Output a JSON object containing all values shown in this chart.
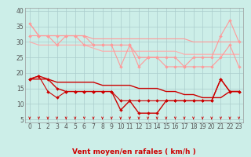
{
  "title": "Vent moyen/en rafales ( km/h )",
  "bg_color": "#cceee8",
  "grid_color": "#aacccc",
  "x_labels": [
    "0",
    "1",
    "2",
    "3",
    "4",
    "5",
    "6",
    "7",
    "8",
    "9",
    "10",
    "11",
    "12",
    "13",
    "14",
    "15",
    "16",
    "17",
    "18",
    "19",
    "20",
    "21",
    "22",
    "23"
  ],
  "ylim": [
    4,
    41
  ],
  "yticks": [
    5,
    10,
    15,
    20,
    25,
    30,
    35,
    40
  ],
  "series": [
    {
      "color": "#ff9999",
      "lw": 0.8,
      "marker": null,
      "data": [
        36,
        32,
        32,
        32,
        32,
        32,
        32,
        31,
        31,
        31,
        31,
        31,
        31,
        31,
        31,
        31,
        31,
        31,
        30,
        30,
        30,
        30,
        30,
        30
      ]
    },
    {
      "color": "#ff9999",
      "lw": 0.8,
      "marker": "D",
      "ms": 2.0,
      "data": [
        36,
        32,
        32,
        32,
        32,
        32,
        32,
        29,
        29,
        29,
        29,
        29,
        25,
        25,
        25,
        25,
        25,
        22,
        25,
        25,
        25,
        32,
        37,
        30
      ]
    },
    {
      "color": "#ff9999",
      "lw": 0.8,
      "marker": "D",
      "ms": 2.0,
      "data": [
        32,
        32,
        32,
        29,
        32,
        32,
        29,
        29,
        29,
        29,
        22,
        29,
        22,
        25,
        25,
        22,
        22,
        22,
        22,
        22,
        22,
        25,
        29,
        22
      ]
    },
    {
      "color": "#ffaaaa",
      "lw": 0.8,
      "marker": null,
      "data": [
        30,
        29,
        29,
        29,
        29,
        29,
        29,
        28,
        27,
        27,
        27,
        27,
        27,
        27,
        27,
        27,
        27,
        26,
        26,
        26,
        26,
        26,
        26,
        26
      ]
    },
    {
      "color": "#cc0000",
      "lw": 1.0,
      "marker": null,
      "data": [
        18,
        18,
        18,
        17,
        17,
        17,
        17,
        17,
        16,
        16,
        16,
        16,
        15,
        15,
        15,
        14,
        14,
        13,
        13,
        12,
        12,
        12,
        14,
        14
      ]
    },
    {
      "color": "#cc0000",
      "lw": 1.0,
      "marker": "D",
      "ms": 2.0,
      "data": [
        18,
        19,
        18,
        15,
        14,
        14,
        14,
        14,
        14,
        14,
        8,
        11,
        7,
        7,
        7,
        11,
        11,
        11,
        11,
        11,
        11,
        18,
        14,
        14
      ]
    },
    {
      "color": "#cc0000",
      "lw": 0.8,
      "marker": "D",
      "ms": 2.0,
      "data": [
        18,
        19,
        14,
        12,
        14,
        14,
        14,
        14,
        14,
        14,
        11,
        11,
        11,
        11,
        11,
        11,
        11,
        11,
        11,
        11,
        11,
        18,
        14,
        14
      ]
    }
  ],
  "arrow_color": "#cc0000",
  "xlabel_color": "#cc0000",
  "tick_color": "#555555",
  "tick_fontsize": 5.5,
  "xlabel_fontsize": 6.5
}
